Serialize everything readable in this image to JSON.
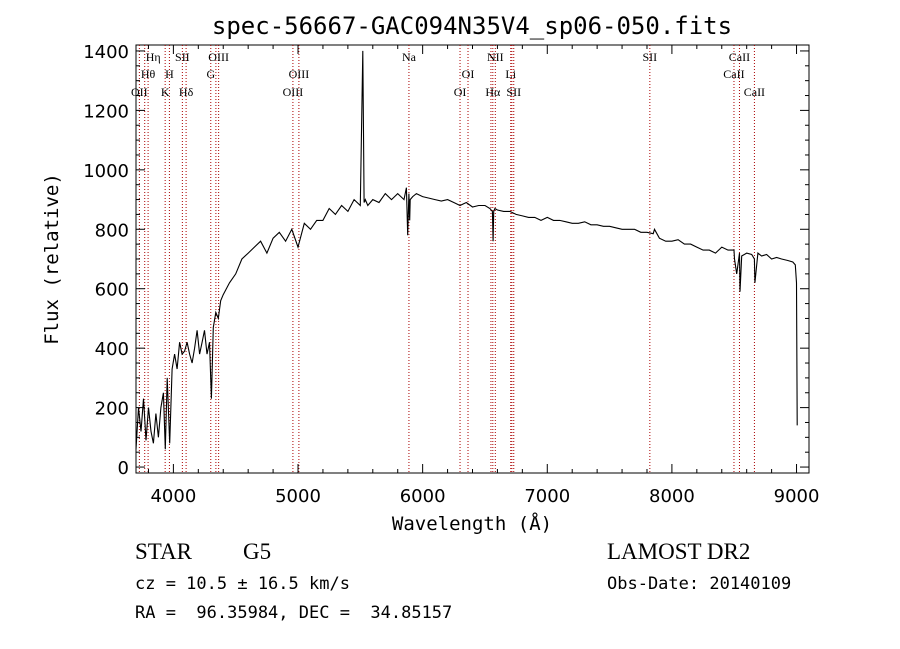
{
  "chart_data": {
    "type": "line",
    "title": "spec-56667-GAC094N35V4_sp06-050.fits",
    "xlabel": "Wavelength (Å)",
    "ylabel": "Flux (relative)",
    "xlim": [
      3700,
      9100
    ],
    "ylim": [
      -20,
      1420
    ],
    "xticks": [
      4000,
      5000,
      6000,
      7000,
      8000,
      9000
    ],
    "xtick_labels": [
      "4000",
      "5000",
      "6000",
      "7000",
      "8000",
      "9000"
    ],
    "yticks": [
      0,
      200,
      400,
      600,
      800,
      1000,
      1200,
      1400
    ],
    "ytick_labels": [
      "0",
      "200",
      "400",
      "600",
      "800",
      "1000",
      "1200",
      "1400"
    ],
    "grid": false,
    "series": [
      {
        "color": "#000000",
        "x": [
          3700,
          3720,
          3740,
          3760,
          3780,
          3800,
          3820,
          3840,
          3860,
          3880,
          3900,
          3920,
          3935,
          3950,
          3970,
          3990,
          4010,
          4030,
          4050,
          4070,
          4090,
          4110,
          4130,
          4150,
          4170,
          4190,
          4210,
          4230,
          4250,
          4270,
          4290,
          4305,
          4320,
          4340,
          4360,
          4380,
          4400,
          4450,
          4500,
          4550,
          4600,
          4650,
          4700,
          4750,
          4800,
          4850,
          4900,
          4950,
          5000,
          5050,
          5100,
          5150,
          5200,
          5250,
          5300,
          5350,
          5400,
          5450,
          5500,
          5520,
          5530,
          5540,
          5560,
          5600,
          5650,
          5700,
          5750,
          5800,
          5850,
          5870,
          5880,
          5890,
          5896,
          5900,
          5920,
          5950,
          6000,
          6050,
          6100,
          6150,
          6200,
          6250,
          6300,
          6350,
          6400,
          6450,
          6500,
          6540,
          6560,
          6565,
          6570,
          6580,
          6600,
          6650,
          6700,
          6750,
          6800,
          6850,
          6900,
          6950,
          7000,
          7050,
          7100,
          7150,
          7200,
          7250,
          7300,
          7350,
          7400,
          7450,
          7500,
          7550,
          7600,
          7650,
          7700,
          7750,
          7800,
          7850,
          7860,
          7900,
          7950,
          8000,
          8050,
          8100,
          8150,
          8200,
          8250,
          8300,
          8350,
          8400,
          8450,
          8498,
          8502,
          8520,
          8542,
          8546,
          8560,
          8600,
          8640,
          8662,
          8666,
          8690,
          8720,
          8760,
          8800,
          8840,
          8880,
          8930,
          8970,
          8990,
          9000,
          9005
        ],
        "y": [
          60,
          200,
          120,
          230,
          90,
          200,
          120,
          80,
          180,
          100,
          200,
          250,
          60,
          300,
          80,
          330,
          380,
          330,
          420,
          380,
          390,
          420,
          380,
          350,
          400,
          460,
          380,
          420,
          460,
          380,
          420,
          230,
          470,
          520,
          500,
          560,
          580,
          620,
          650,
          700,
          720,
          740,
          760,
          720,
          770,
          790,
          760,
          800,
          740,
          820,
          800,
          830,
          830,
          870,
          850,
          880,
          860,
          900,
          880,
          1400,
          890,
          900,
          880,
          900,
          890,
          920,
          900,
          920,
          900,
          940,
          780,
          920,
          830,
          900,
          910,
          920,
          910,
          905,
          900,
          895,
          900,
          890,
          880,
          890,
          875,
          880,
          880,
          870,
          860,
          760,
          860,
          870,
          865,
          860,
          860,
          850,
          845,
          840,
          840,
          830,
          840,
          830,
          830,
          825,
          820,
          820,
          825,
          815,
          815,
          810,
          810,
          805,
          800,
          800,
          800,
          790,
          790,
          785,
          800,
          770,
          760,
          760,
          765,
          750,
          750,
          740,
          730,
          730,
          720,
          740,
          730,
          730,
          700,
          650,
          720,
          590,
          710,
          720,
          715,
          700,
          620,
          720,
          710,
          715,
          700,
          705,
          700,
          695,
          690,
          680,
          620,
          140
        ]
      }
    ],
    "lines": {
      "positions": [
        3727,
        3770,
        3797,
        3934,
        3968,
        4072,
        4102,
        4300,
        4341,
        4363,
        4959,
        5007,
        5890,
        6300,
        6364,
        6548,
        6563,
        6583,
        6707,
        6716,
        6731,
        7823,
        8498,
        8542,
        8662
      ],
      "label_color": "#000000",
      "marker_color": "#aa0000",
      "labels": [
        {
          "text": "OII",
          "x": 3727,
          "row": 3
        },
        {
          "text": "Hη",
          "x": 3838,
          "row": 1
        },
        {
          "text": "Hθ",
          "x": 3797,
          "row": 2
        },
        {
          "text": "K",
          "x": 3934,
          "row": 3
        },
        {
          "text": "H",
          "x": 3968,
          "row": 2
        },
        {
          "text": "SII",
          "x": 4072,
          "row": 1
        },
        {
          "text": "Hδ",
          "x": 4102,
          "row": 3
        },
        {
          "text": "OIII",
          "x": 4363,
          "row": 1
        },
        {
          "text": "G",
          "x": 4300,
          "row": 2
        },
        {
          "text": "OIII",
          "x": 5007,
          "row": 2
        },
        {
          "text": "OIII",
          "x": 4959,
          "row": 3
        },
        {
          "text": "Na",
          "x": 5890,
          "row": 1
        },
        {
          "text": "OI",
          "x": 6364,
          "row": 2
        },
        {
          "text": "OI",
          "x": 6300,
          "row": 3
        },
        {
          "text": "NII",
          "x": 6583,
          "row": 1
        },
        {
          "text": "Hα",
          "x": 6563,
          "row": 3
        },
        {
          "text": "Li",
          "x": 6707,
          "row": 2
        },
        {
          "text": "SII",
          "x": 6731,
          "row": 3
        },
        {
          "text": "SII",
          "x": 7823,
          "row": 1
        },
        {
          "text": "CaII",
          "x": 8542,
          "row": 1
        },
        {
          "text": "CaII",
          "x": 8498,
          "row": 2
        },
        {
          "text": "CaII",
          "x": 8662,
          "row": 3
        }
      ]
    }
  },
  "info": {
    "class": "STAR",
    "subclass": "G5",
    "survey": "LAMOST DR2",
    "redshift": "cz = 10.5 ± 16.5 km/s",
    "obs_date": "Obs-Date: 20140109",
    "coords": "RA =  96.35984, DEC =  34.85157"
  }
}
